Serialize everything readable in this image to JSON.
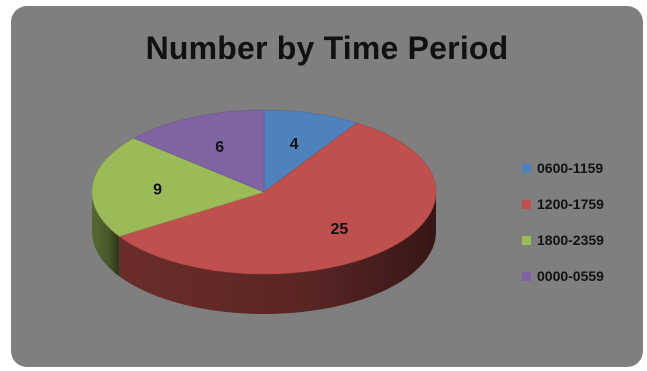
{
  "chart_data": {
    "type": "pie",
    "title": "Number by Time Period",
    "categories": [
      "0600-1159",
      "1200-1759",
      "1800-2359",
      "0000-0559"
    ],
    "values": [
      4,
      25,
      9,
      6
    ],
    "colors": [
      "#4f81bd",
      "#c0504d",
      "#9bbb59",
      "#8064a2"
    ],
    "legend_position": "right",
    "three_d": true
  },
  "colors": {
    "background": "#7f7f7f"
  }
}
